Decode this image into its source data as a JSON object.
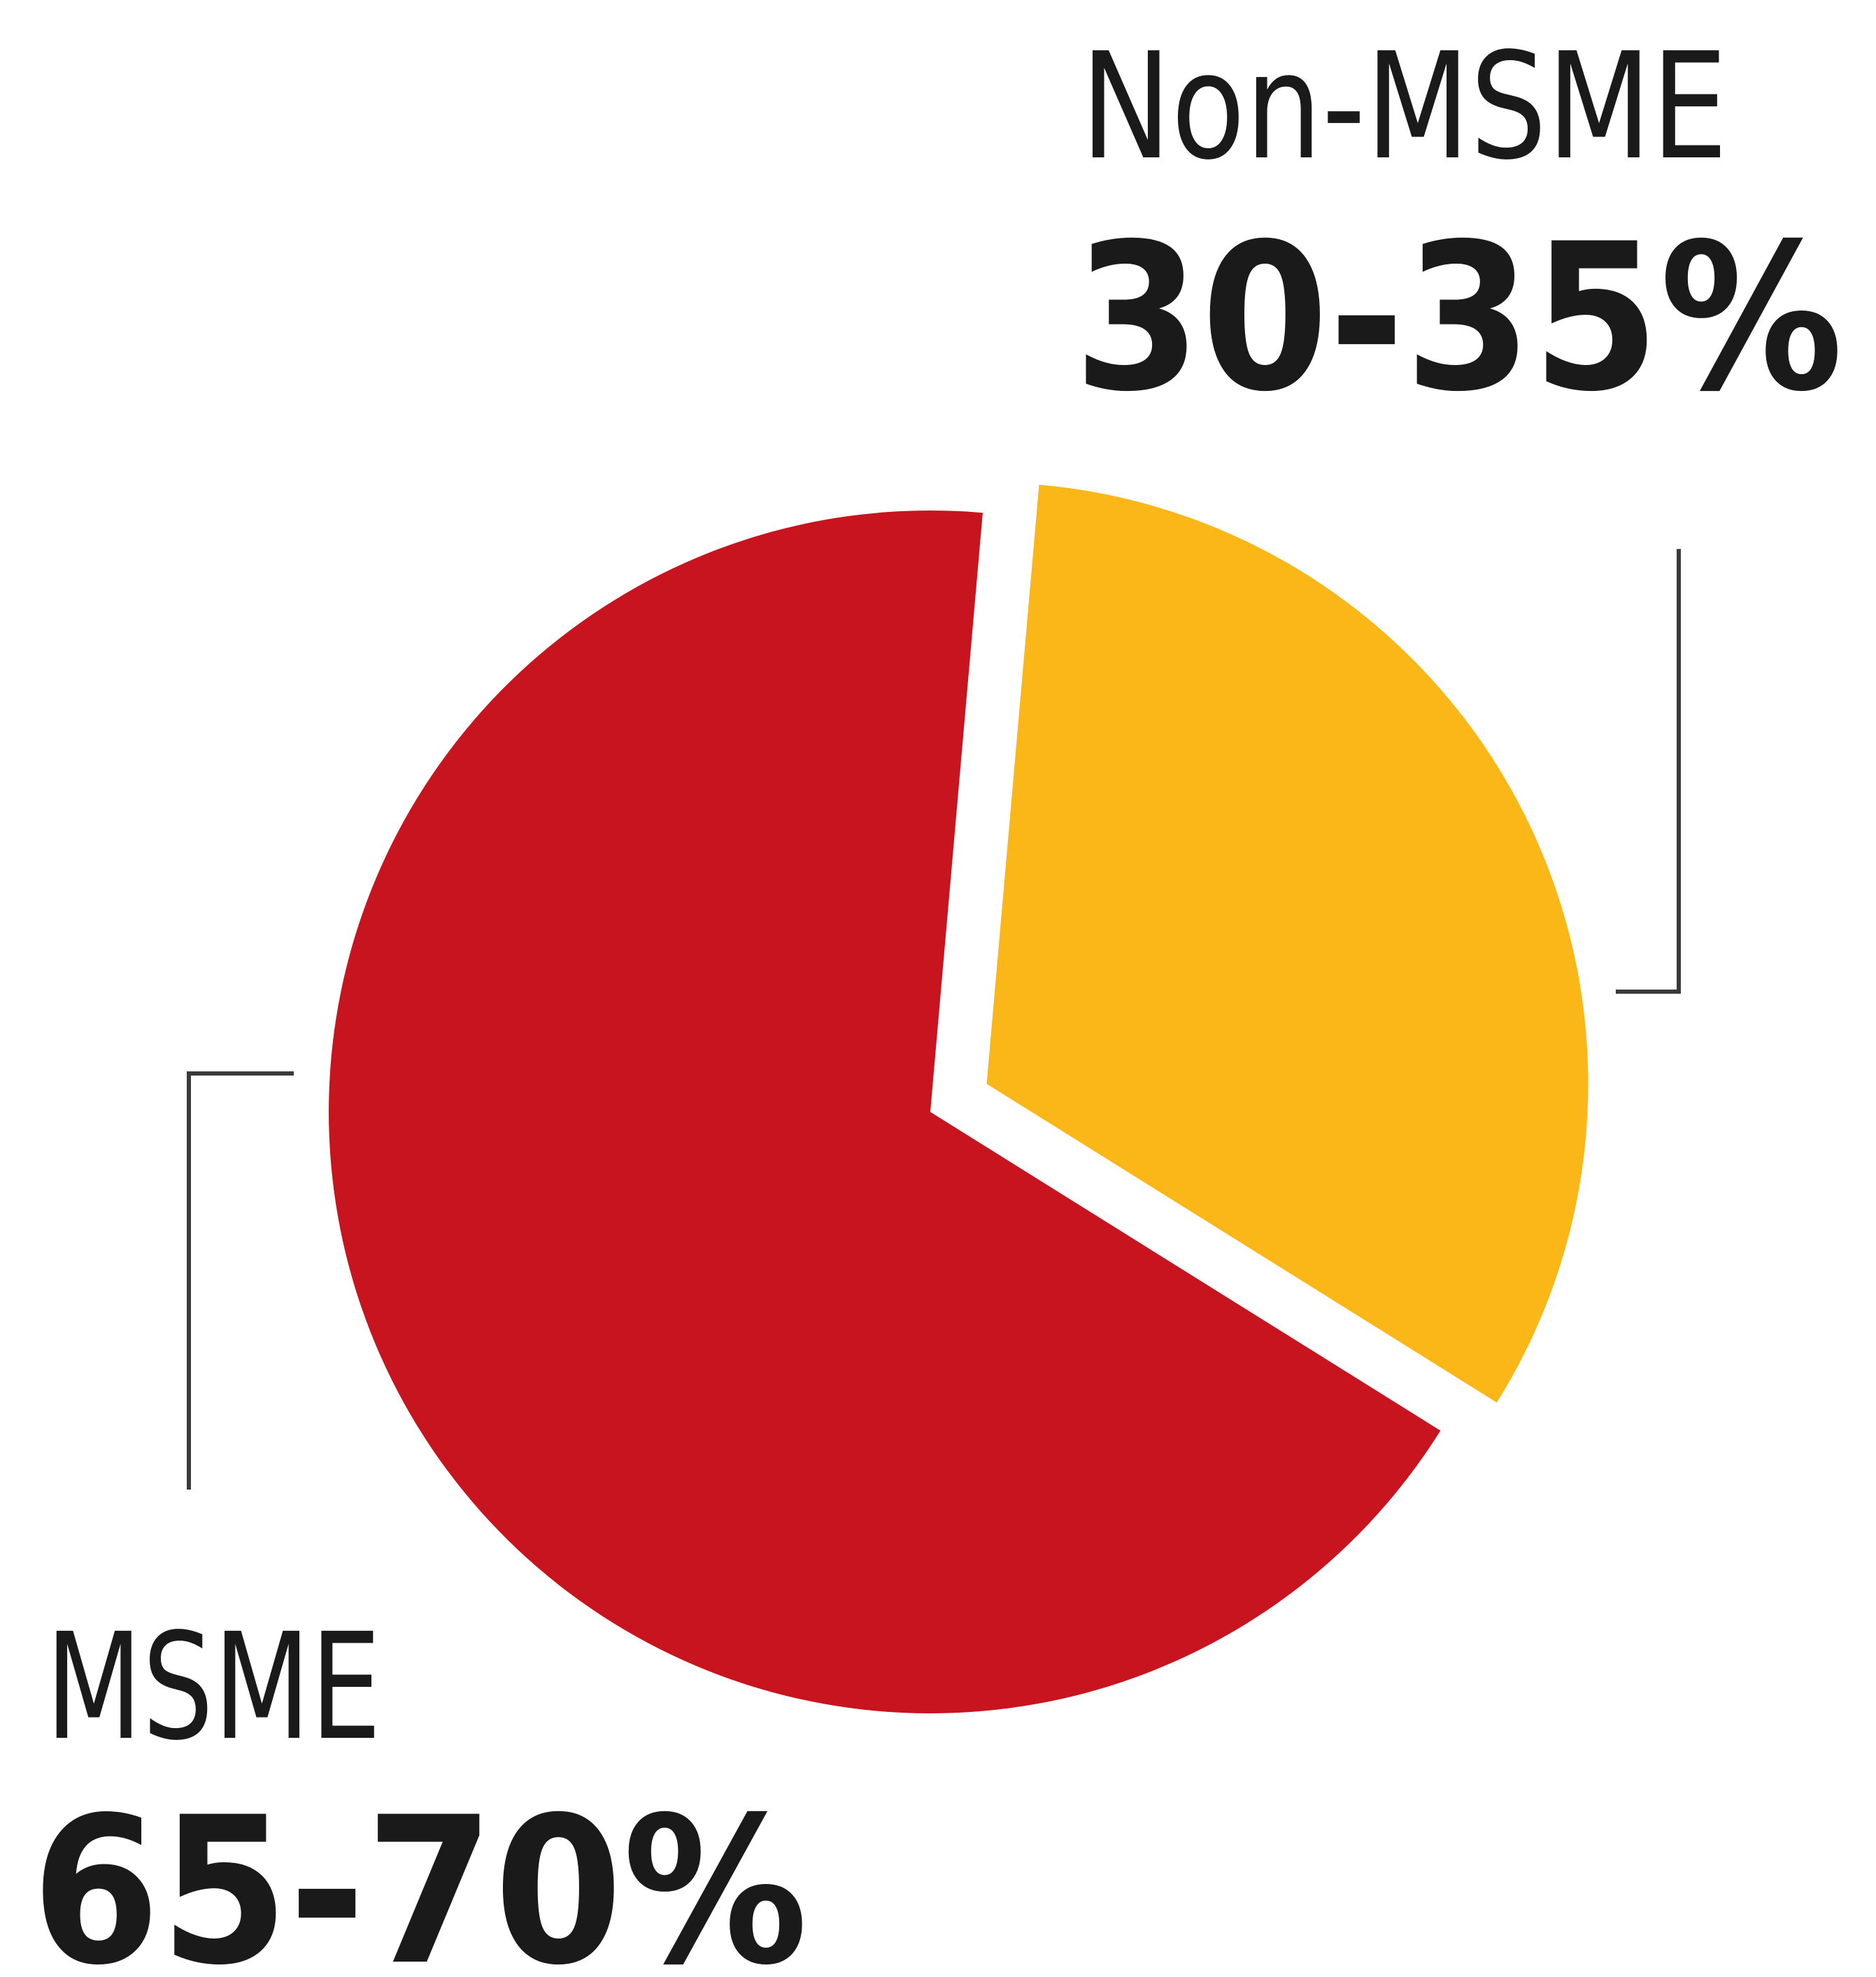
{
  "chart_data": {
    "type": "pie",
    "slices": [
      {
        "label": "Non-MSME",
        "value_label": "30-35%",
        "value": 32.5,
        "color": "#fbb718"
      },
      {
        "label": "MSME",
        "value_label": "65-70%",
        "value": 67.5,
        "color": "#c8141e"
      }
    ]
  }
}
